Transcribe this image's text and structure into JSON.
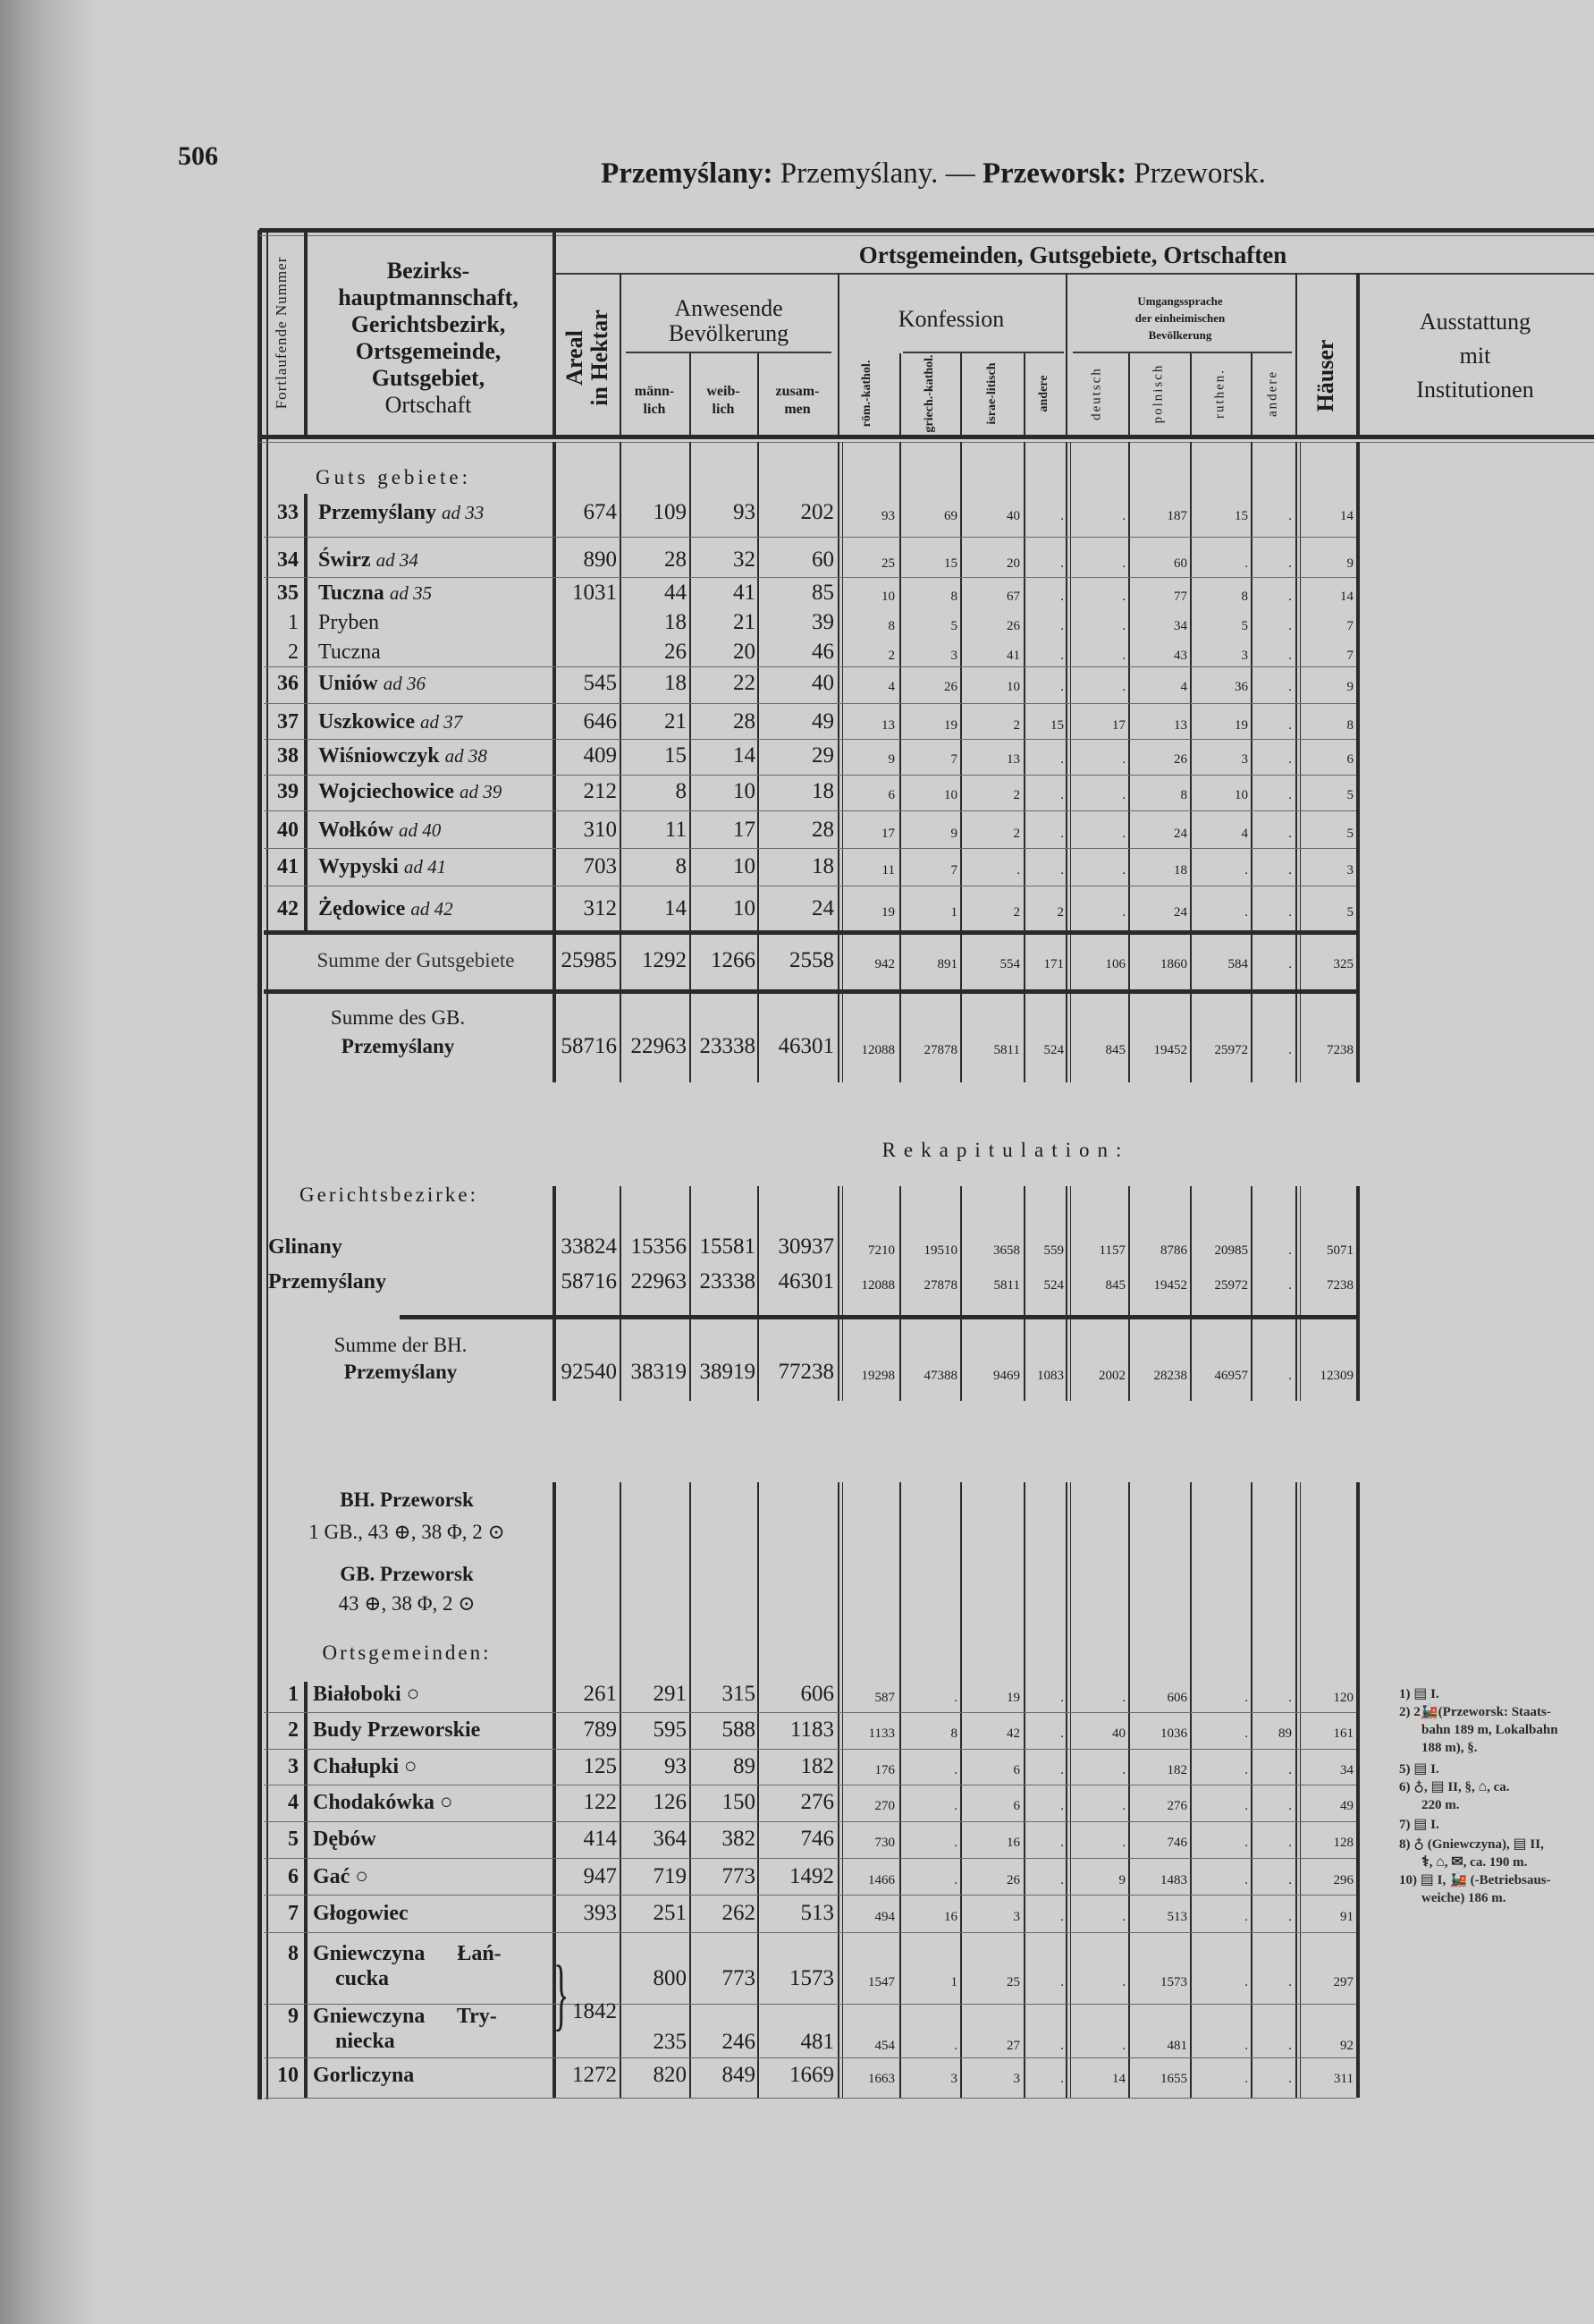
{
  "page": {
    "number": "506",
    "title_bold_1": "Przemyślany:",
    "title_light_1": " Przemyślany. — ",
    "title_bold_2": "Przeworsk:",
    "title_light_2": " Przeworsk."
  },
  "header": {
    "nr": "Fortlaufende Nummer",
    "name_lines": [
      "Bezirks-",
      "hauptmannschaft,",
      "Gerichtsbezirk,",
      "Ortsgemeinde,",
      "Gutsgebiet,",
      "Ortschaft"
    ],
    "main": "Ortsgemeinden, Gutsgebiete, Ortschaften",
    "areal": [
      "Areal",
      "in Hektar"
    ],
    "population": [
      "Anwesende",
      "Bevölkerung"
    ],
    "pop_cols": [
      [
        "männ-",
        "lich"
      ],
      [
        "weib-",
        "lich"
      ],
      [
        "zusam-",
        "men"
      ]
    ],
    "konfession": "Konfession",
    "konf_cols": [
      "röm.-kathol.",
      "griech.-kathol.",
      "israe-litisch",
      "andere"
    ],
    "sprache": [
      "Umgangssprache",
      "der einheimischen",
      "Bevölkerung"
    ],
    "sprache_cols": [
      "deutsch",
      "polnisch",
      "ruthen.",
      "andere"
    ],
    "haeuser": "Häuser",
    "ausstattung": [
      "Ausstattung",
      "mit",
      "Institutionen"
    ]
  },
  "section_guts": {
    "label": "Guts gebiete:",
    "rows": [
      {
        "nr": "33",
        "name": "Przemyślany",
        "ad": "ad 33",
        "v": [
          "674",
          "109",
          "93",
          "202",
          "93",
          "69",
          "40",
          ".",
          ".",
          "187",
          "15",
          ".",
          "14"
        ]
      },
      {
        "nr": "34",
        "name": "Świrz",
        "ad": "ad 34",
        "v": [
          "890",
          "28",
          "32",
          "60",
          "25",
          "15",
          "20",
          ".",
          ".",
          "60",
          ".",
          ".",
          "9"
        ]
      },
      {
        "nr": "35",
        "name": "Tuczna",
        "ad": "ad 35",
        "v": [
          "1031",
          "44",
          "41",
          "85",
          "10",
          "8",
          "67",
          ".",
          ".",
          "77",
          "8",
          ".",
          "14"
        ]
      },
      {
        "nr": "1",
        "name": "Pryben",
        "ad": "",
        "sub": true,
        "v": [
          "",
          "18",
          "21",
          "39",
          "8",
          "5",
          "26",
          ".",
          ".",
          "34",
          "5",
          ".",
          "7"
        ]
      },
      {
        "nr": "2",
        "name": "Tuczna",
        "ad": "",
        "sub": true,
        "v": [
          "",
          "26",
          "20",
          "46",
          "2",
          "3",
          "41",
          ".",
          ".",
          "43",
          "3",
          ".",
          "7"
        ]
      },
      {
        "nr": "36",
        "name": "Uniów",
        "ad": "ad 36",
        "v": [
          "545",
          "18",
          "22",
          "40",
          "4",
          "26",
          "10",
          ".",
          ".",
          "4",
          "36",
          ".",
          "9"
        ]
      },
      {
        "nr": "37",
        "name": "Uszkowice",
        "ad": "ad 37",
        "v": [
          "646",
          "21",
          "28",
          "49",
          "13",
          "19",
          "2",
          "15",
          "17",
          "13",
          "19",
          ".",
          "8"
        ]
      },
      {
        "nr": "38",
        "name": "Wiśniowczyk",
        "ad": "ad 38",
        "v": [
          "409",
          "15",
          "14",
          "29",
          "9",
          "7",
          "13",
          ".",
          ".",
          "26",
          "3",
          ".",
          "6"
        ]
      },
      {
        "nr": "39",
        "name": "Wojciechowice",
        "ad": "ad 39",
        "v": [
          "212",
          "8",
          "10",
          "18",
          "6",
          "10",
          "2",
          ".",
          ".",
          "8",
          "10",
          ".",
          "5"
        ]
      },
      {
        "nr": "40",
        "name": "Wołków",
        "ad": "ad 40",
        "v": [
          "310",
          "11",
          "17",
          "28",
          "17",
          "9",
          "2",
          ".",
          ".",
          "24",
          "4",
          ".",
          "5"
        ]
      },
      {
        "nr": "41",
        "name": "Wypyski",
        "ad": "ad 41",
        "v": [
          "703",
          "8",
          "10",
          "18",
          "11",
          "7",
          ".",
          ".",
          ".",
          "18",
          ".",
          ".",
          "3"
        ]
      },
      {
        "nr": "42",
        "name": "Żędowice",
        "ad": "ad 42",
        "v": [
          "312",
          "14",
          "10",
          "24",
          "19",
          "1",
          "2",
          "2",
          ".",
          "24",
          ".",
          ".",
          "5"
        ]
      }
    ],
    "sum_guts": {
      "label": "Summe der Gutsgebiete",
      "v": [
        "25985",
        "1292",
        "1266",
        "2558",
        "942",
        "891",
        "554",
        "171",
        "106",
        "1860",
        "584",
        ".",
        "325"
      ]
    },
    "sum_gb": {
      "label_1": "Summe des GB.",
      "label_2": "Przemyślany",
      "v": [
        "58716",
        "22963",
        "23338",
        "46301",
        "12088",
        "27878",
        "5811",
        "524",
        "845",
        "19452",
        "25972",
        ".",
        "7238"
      ]
    }
  },
  "rekap": {
    "title": "Rekapitulation:",
    "label": "Gerichtsbezirke:",
    "rows": [
      {
        "name": "Glinany",
        "v": [
          "33824",
          "15356",
          "15581",
          "30937",
          "7210",
          "19510",
          "3658",
          "559",
          "1157",
          "8786",
          "20985",
          ".",
          "5071"
        ]
      },
      {
        "name": "Przemyślany",
        "v": [
          "58716",
          "22963",
          "23338",
          "46301",
          "12088",
          "27878",
          "5811",
          "524",
          "845",
          "19452",
          "25972",
          ".",
          "7238"
        ]
      }
    ],
    "sum_bh": {
      "label_1": "Summe der BH.",
      "label_2": "Przemyślany",
      "v": [
        "92540",
        "38319",
        "38919",
        "77238",
        "19298",
        "47388",
        "9469",
        "1083",
        "2002",
        "28238",
        "46957",
        ".",
        "12309"
      ]
    }
  },
  "przeworsk": {
    "bh": "BH. Przeworsk",
    "bh_info": "1 GB., 43 ⊕, 38 Φ, 2 ⊙",
    "gb": "GB. Przeworsk",
    "gb_info": "43 ⊕, 38 Φ, 2 ⊙",
    "label": "Ortsgemeinden:",
    "rows": [
      {
        "nr": "1",
        "name": [
          "Białoboki ○"
        ],
        "v": [
          "261",
          "291",
          "315",
          "606",
          "587",
          ".",
          "19",
          ".",
          ".",
          "606",
          ".",
          ".",
          "120"
        ]
      },
      {
        "nr": "2",
        "name": [
          "Budy Przeworskie"
        ],
        "v": [
          "789",
          "595",
          "588",
          "1183",
          "1133",
          "8",
          "42",
          ".",
          "40",
          "1036",
          ".",
          "89",
          "161"
        ]
      },
      {
        "nr": "3",
        "name": [
          "Chałupki ○"
        ],
        "v": [
          "125",
          "93",
          "89",
          "182",
          "176",
          ".",
          "6",
          ".",
          ".",
          "182",
          ".",
          ".",
          "34"
        ]
      },
      {
        "nr": "4",
        "name": [
          "Chodakówka ○"
        ],
        "v": [
          "122",
          "126",
          "150",
          "276",
          "270",
          ".",
          "6",
          ".",
          ".",
          "276",
          ".",
          ".",
          "49"
        ]
      },
      {
        "nr": "5",
        "name": [
          "Dębów"
        ],
        "v": [
          "414",
          "364",
          "382",
          "746",
          "730",
          ".",
          "16",
          ".",
          ".",
          "746",
          ".",
          ".",
          "128"
        ]
      },
      {
        "nr": "6",
        "name": [
          "Gać ○"
        ],
        "v": [
          "947",
          "719",
          "773",
          "1492",
          "1466",
          ".",
          "26",
          ".",
          "9",
          "1483",
          ".",
          ".",
          "296"
        ]
      },
      {
        "nr": "7",
        "name": [
          "Głogowiec"
        ],
        "v": [
          "393",
          "251",
          "262",
          "513",
          "494",
          "16",
          "3",
          ".",
          ".",
          "513",
          ".",
          ".",
          "91"
        ]
      },
      {
        "nr": "8",
        "name": [
          "Gniewczyna  Łań-",
          "cucka"
        ],
        "v": [
          "",
          "800",
          "773",
          "1573",
          "1547",
          "1",
          "25",
          ".",
          ".",
          "1573",
          ".",
          ".",
          "297"
        ]
      },
      {
        "nr": "9",
        "name": [
          "Gniewczyna  Try-",
          "niecka"
        ],
        "v": [
          "",
          "235",
          "246",
          "481",
          "454",
          ".",
          "27",
          ".",
          ".",
          "481",
          ".",
          ".",
          "92"
        ]
      },
      {
        "nr": "10",
        "name": [
          "Gorliczyna"
        ],
        "v": [
          "1272",
          "820",
          "849",
          "1669",
          "1663",
          "3",
          "3",
          ".",
          "14",
          "1655",
          ".",
          ".",
          "311"
        ]
      }
    ],
    "shared_areal": "1842",
    "footnotes": [
      [
        {
          "t": "1) "
        },
        {
          "icon": "school-icon"
        },
        {
          "t": " I."
        }
      ],
      [
        {
          "t": "2) 2"
        },
        {
          "icon": "train-icon"
        },
        {
          "t": "(Przeworsk: Staats-"
        }
      ],
      [
        {
          "t": "bahn 189 m, Lokalbahn"
        }
      ],
      [
        {
          "t": "188 m), §."
        }
      ],
      [
        {
          "t": "5) "
        },
        {
          "icon": "school-icon"
        },
        {
          "t": " I."
        }
      ],
      [
        {
          "t": "6) "
        },
        {
          "icon": "church-icon"
        },
        {
          "t": ", "
        },
        {
          "icon": "school-icon"
        },
        {
          "t": " II, §, "
        },
        {
          "icon": "post-office-icon"
        },
        {
          "t": ", ca."
        }
      ],
      [
        {
          "t": "220 m."
        }
      ],
      [
        {
          "t": "7) "
        },
        {
          "icon": "school-icon"
        },
        {
          "t": " I."
        }
      ],
      [
        {
          "t": "8) "
        },
        {
          "icon": "church-icon"
        },
        {
          "t": " (Gniewczyna), "
        },
        {
          "icon": "school-icon"
        },
        {
          "t": " II,"
        }
      ],
      [
        {
          "icon": "pharmacy-icon"
        },
        {
          "t": ", "
        },
        {
          "icon": "post-office-icon"
        },
        {
          "t": ", "
        },
        {
          "icon": "telegraph-icon"
        },
        {
          "t": ", ca. 190 m."
        }
      ],
      [
        {
          "t": "10) "
        },
        {
          "icon": "school-icon"
        },
        {
          "t": " I, "
        },
        {
          "icon": "train-icon"
        },
        {
          "t": " (-Betriebsaus-"
        }
      ],
      [
        {
          "t": "weiche) 186 m."
        }
      ]
    ]
  }
}
